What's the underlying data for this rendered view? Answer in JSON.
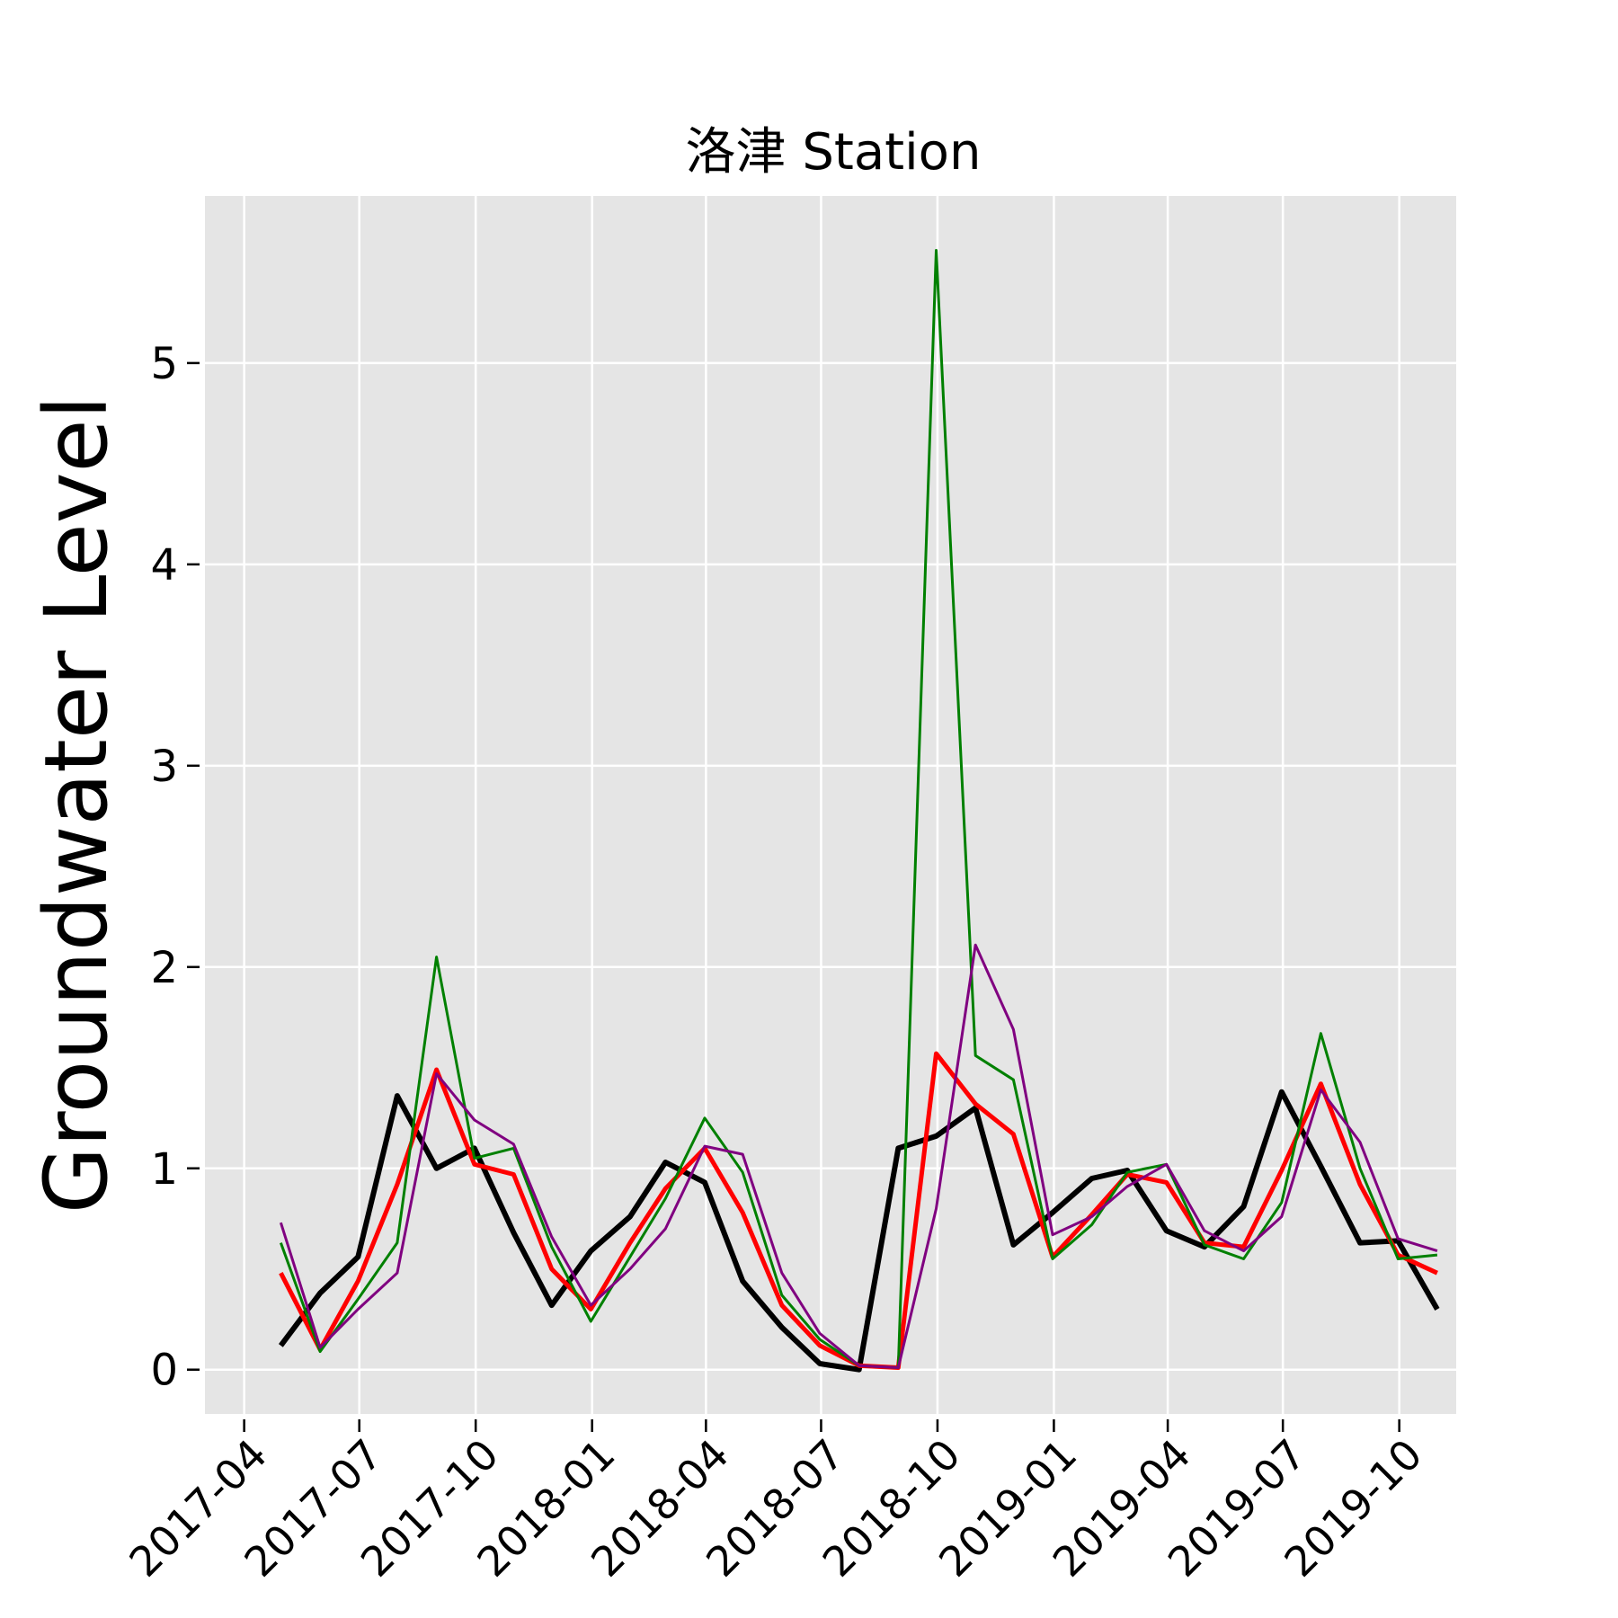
{
  "chart_data": {
    "type": "line",
    "title": "洛津 Station",
    "xlabel": "",
    "ylabel": "Groundwater Level",
    "ylim": [
      -0.22,
      5.83
    ],
    "xlim": [
      "2017-03-01",
      "2019-11-15"
    ],
    "grid": true,
    "background": "#e5e5e5",
    "x_ticks": [
      "2017-04",
      "2017-07",
      "2017-10",
      "2018-01",
      "2018-04",
      "2018-07",
      "2018-10",
      "2019-01",
      "2019-04",
      "2019-07",
      "2019-10"
    ],
    "x_tick_dates": [
      "2017-04-01",
      "2017-07-01",
      "2017-10-01",
      "2018-01-01",
      "2018-04-01",
      "2018-07-01",
      "2018-10-01",
      "2019-01-01",
      "2019-04-01",
      "2019-07-01",
      "2019-10-01"
    ],
    "y_ticks": [
      0,
      1,
      2,
      3,
      4,
      5
    ],
    "x": [
      "2017-04-30",
      "2017-05-31",
      "2017-06-30",
      "2017-07-31",
      "2017-08-31",
      "2017-09-30",
      "2017-10-31",
      "2017-11-30",
      "2017-12-31",
      "2018-01-31",
      "2018-02-28",
      "2018-03-31",
      "2018-04-30",
      "2018-05-31",
      "2018-06-30",
      "2018-07-31",
      "2018-08-31",
      "2018-09-30",
      "2018-10-31",
      "2018-11-30",
      "2018-12-31",
      "2019-01-31",
      "2019-02-28",
      "2019-03-31",
      "2019-04-30",
      "2019-05-31",
      "2019-06-30",
      "2019-07-31",
      "2019-08-31",
      "2019-09-30",
      "2019-10-31"
    ],
    "series": [
      {
        "color": "#000000",
        "stroke_width": 6,
        "values": [
          0.12,
          0.38,
          0.56,
          1.36,
          1.0,
          1.1,
          0.68,
          0.32,
          0.59,
          0.76,
          1.03,
          0.93,
          0.44,
          0.21,
          0.03,
          0.0,
          1.1,
          1.16,
          1.3,
          0.62,
          0.78,
          0.95,
          0.99,
          0.69,
          0.61,
          0.81,
          1.38,
          1.01,
          0.63,
          0.64,
          0.3
        ]
      },
      {
        "color": "#ff0000",
        "stroke_width": 5,
        "values": [
          0.48,
          0.1,
          0.44,
          0.92,
          1.49,
          1.02,
          0.97,
          0.5,
          0.3,
          0.63,
          0.9,
          1.1,
          0.78,
          0.32,
          0.12,
          0.02,
          0.01,
          1.57,
          1.32,
          1.17,
          0.56,
          0.77,
          0.97,
          0.93,
          0.63,
          0.61,
          0.99,
          1.42,
          0.92,
          0.57,
          0.48
        ]
      },
      {
        "color": "#008000",
        "stroke_width": 3,
        "values": [
          0.63,
          0.09,
          0.35,
          0.63,
          2.05,
          1.05,
          1.1,
          0.61,
          0.24,
          0.56,
          0.85,
          1.25,
          0.98,
          0.37,
          0.15,
          0.02,
          0.01,
          5.56,
          1.56,
          1.44,
          0.55,
          0.72,
          0.98,
          1.02,
          0.62,
          0.55,
          0.83,
          1.67,
          1.0,
          0.55,
          0.57
        ]
      },
      {
        "color": "#800080",
        "stroke_width": 3,
        "values": [
          0.73,
          0.11,
          0.3,
          0.48,
          1.47,
          1.24,
          1.12,
          0.66,
          0.32,
          0.5,
          0.7,
          1.11,
          1.07,
          0.48,
          0.18,
          0.02,
          0.01,
          0.8,
          2.11,
          1.69,
          0.67,
          0.76,
          0.91,
          1.02,
          0.69,
          0.59,
          0.76,
          1.39,
          1.13,
          0.65,
          0.59
        ]
      }
    ]
  }
}
